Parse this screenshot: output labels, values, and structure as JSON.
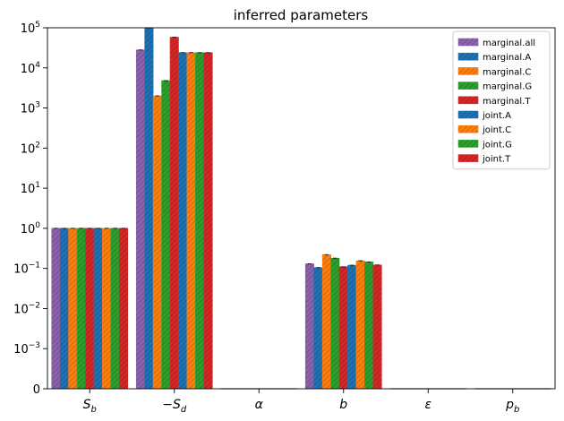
{
  "chart_data": {
    "type": "bar",
    "title": "inferred parameters",
    "xlabel": "",
    "ylabel": "",
    "y_scale": "symlog",
    "linthresh": 0.001,
    "ylim": [
      0,
      100000
    ],
    "y_ticks": [
      {
        "value": 0,
        "base": "0",
        "exp": ""
      },
      {
        "value": 0.001,
        "base": "10",
        "exp": "−3"
      },
      {
        "value": 0.01,
        "base": "10",
        "exp": "−2"
      },
      {
        "value": 0.1,
        "base": "10",
        "exp": "−1"
      },
      {
        "value": 1,
        "base": "10",
        "exp": "0"
      },
      {
        "value": 10,
        "base": "10",
        "exp": "1"
      },
      {
        "value": 100,
        "base": "10",
        "exp": "2"
      },
      {
        "value": 1000,
        "base": "10",
        "exp": "3"
      },
      {
        "value": 10000,
        "base": "10",
        "exp": "4"
      },
      {
        "value": 100000,
        "base": "10",
        "exp": "5"
      }
    ],
    "categories": [
      {
        "prefix": "",
        "main": "S",
        "sub": "b"
      },
      {
        "prefix": "−",
        "main": "S",
        "sub": "d"
      },
      {
        "prefix": "",
        "main": "α",
        "sub": ""
      },
      {
        "prefix": "",
        "main": "b",
        "sub": ""
      },
      {
        "prefix": "",
        "main": "ε",
        "sub": ""
      },
      {
        "prefix": "",
        "main": "p",
        "sub": "b"
      }
    ],
    "legend_position": "top-right",
    "series": [
      {
        "name": "marginal.all",
        "color": "#8c62ac",
        "values": [
          1.0,
          28000,
          0,
          0.13,
          0,
          0
        ]
      },
      {
        "name": "marginal.A",
        "color": "#1f72b4",
        "values": [
          1.0,
          100000,
          0,
          0.105,
          0,
          0
        ]
      },
      {
        "name": "marginal.C",
        "color": "#ff7f0e",
        "values": [
          1.0,
          2000,
          0,
          0.22,
          0,
          0
        ]
      },
      {
        "name": "marginal.G",
        "color": "#2ca02c",
        "values": [
          1.0,
          4800,
          0,
          0.18,
          0,
          0
        ]
      },
      {
        "name": "marginal.T",
        "color": "#d62728",
        "values": [
          1.0,
          58000,
          0,
          0.11,
          0,
          0
        ]
      },
      {
        "name": "joint.A",
        "color": "#1f72b4",
        "values": [
          1.0,
          24000,
          0,
          0.12,
          0,
          0
        ]
      },
      {
        "name": "joint.C",
        "color": "#ff7f0e",
        "values": [
          1.0,
          24000,
          0,
          0.155,
          0,
          0
        ]
      },
      {
        "name": "joint.G",
        "color": "#2ca02c",
        "values": [
          1.0,
          24000,
          0,
          0.145,
          0,
          0
        ]
      },
      {
        "name": "joint.T",
        "color": "#d62728",
        "values": [
          1.0,
          24000,
          0,
          0.122,
          0,
          0
        ]
      }
    ]
  }
}
